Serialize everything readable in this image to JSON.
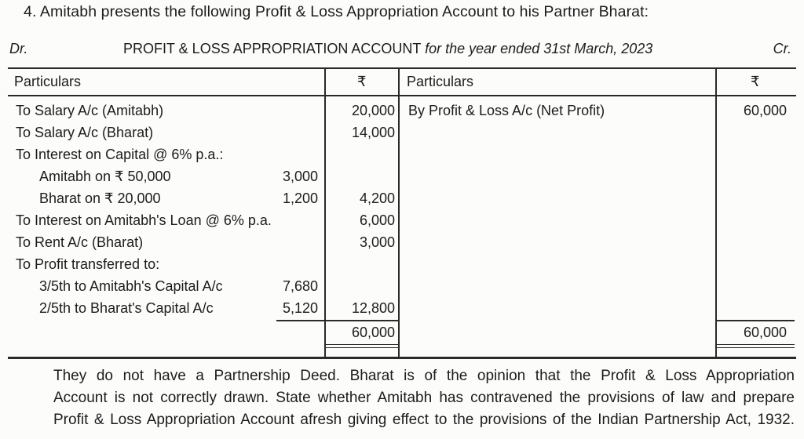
{
  "question": "4.  Amitabh presents the following Profit & Loss Appropriation Account to his Partner Bharat:",
  "account": {
    "dr": "Dr.",
    "cr": "Cr.",
    "title": "PROFIT & LOSS APPROPRIATION ACCOUNT",
    "title_suffix": "for the year ended 31st March, 2023",
    "headers": {
      "particulars_left": "Particulars",
      "amount_left": "₹",
      "particulars_right": "Particulars",
      "amount_right": "₹"
    },
    "debit_rows": [
      {
        "text": "To  Salary A/c (Amitabh)",
        "sub": "",
        "amount": "20,000"
      },
      {
        "text": "To  Salary A/c (Bharat)",
        "sub": "",
        "amount": "14,000"
      },
      {
        "text": "To  Interest on Capital @ 6% p.a.:",
        "sub": "",
        "amount": ""
      },
      {
        "text": "Amitabh on ₹ 50,000",
        "sub": "3,000",
        "amount": "",
        "indent": true
      },
      {
        "text": "Bharat on ₹ 20,000",
        "sub": "1,200",
        "amount": "4,200",
        "indent": true
      },
      {
        "text": "To  Interest on Amitabh's Loan @ 6% p.a.",
        "sub": "",
        "amount": "6,000"
      },
      {
        "text": "To  Rent A/c (Bharat)",
        "sub": "",
        "amount": "3,000"
      },
      {
        "text": "To  Profit transferred to:",
        "sub": "",
        "amount": ""
      },
      {
        "text": "3/5th to Amitabh's Capital A/c",
        "sub": "7,680",
        "amount": "",
        "indent": true
      },
      {
        "text": "2/5th to Bharat's Capital A/c",
        "sub": "5,120",
        "amount": "12,800",
        "indent": true
      }
    ],
    "credit_rows": [
      {
        "text": "By  Profit & Loss A/c (Net Profit)",
        "amount": "60,000"
      }
    ],
    "total_left": "60,000",
    "total_right": "60,000"
  },
  "paragraph": [
    "They do not have a Partnership Deed. Bharat is of the opinion that the Profit & Loss Appropriation",
    "Account is not correctly drawn. State whether Amitabh has contravened the provisions of law and prepare",
    "Profit & Loss Appropriation Account afresh giving effect to the provisions of the Indian Partnership Act, 1932."
  ]
}
